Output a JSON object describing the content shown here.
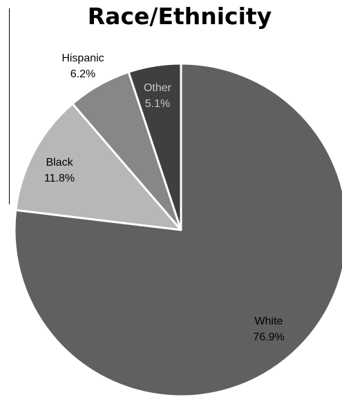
{
  "chart_data": {
    "type": "pie",
    "title": "Race/Ethnicity",
    "slices": [
      {
        "label": "White",
        "value": 76.9,
        "value_label": "76.9%",
        "color": "#606060",
        "text_color": "#000000"
      },
      {
        "label": "Black",
        "value": 11.8,
        "value_label": "11.8%",
        "color": "#b7b7b7",
        "text_color": "#000000"
      },
      {
        "label": "Hispanic",
        "value": 6.2,
        "value_label": "6.2%",
        "color": "#878787",
        "text_color": "#000000"
      },
      {
        "label": "Other",
        "value": 5.1,
        "value_label": "5.1%",
        "color": "#3f3f3f",
        "text_color": "#c8c8c8"
      }
    ],
    "start_angle_deg": 0,
    "direction": "clockwise",
    "legend": "none"
  }
}
